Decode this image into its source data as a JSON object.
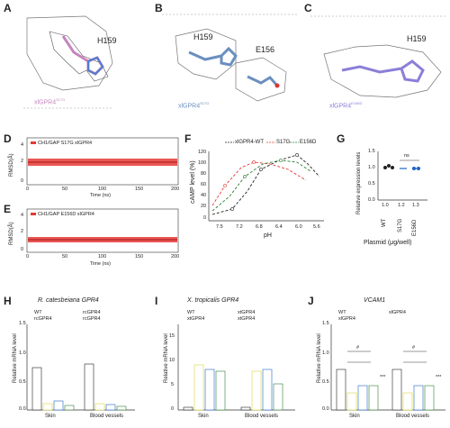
{
  "panels": {
    "A": {
      "label": "A",
      "residue": "H159",
      "caption": "xlGPR4",
      "caption_sup": "S17G"
    },
    "B": {
      "label": "B",
      "residue1": "H159",
      "residue2": "E156",
      "caption": "xlGPR4",
      "caption_sup": "S17G"
    },
    "C": {
      "label": "C",
      "residue": "H159",
      "caption": "xlGPR4",
      "caption_sup": "E156D"
    },
    "D": {
      "label": "D",
      "legend": "CH1/GAP S17G xlGPR4",
      "ylabel": "RMSD(Å)",
      "xlabel": "Time (ns)",
      "xticks": [
        "0",
        "50",
        "100",
        "150",
        "200"
      ],
      "yticks": [
        "4",
        "2",
        "0"
      ]
    },
    "E": {
      "label": "E",
      "legend": "CH1/GAP E156D xlGPR4",
      "ylabel": "RMSD(Å)",
      "xlabel": "Time (ns)",
      "xticks": [
        "0",
        "50",
        "100",
        "150",
        "200"
      ],
      "yticks": [
        "4",
        "2",
        "0"
      ]
    },
    "F": {
      "label": "F",
      "ylabel": "cAMP level (%)",
      "xlabel": "pH",
      "yticks": [
        "120",
        "100",
        "80",
        "60",
        "40",
        "20",
        "0"
      ],
      "xticks": [
        "7.5",
        "7.2",
        "6.8",
        "6.4",
        "6.0",
        "5.6"
      ],
      "legend": [
        "xlGPR4-WT",
        "S17G",
        "E156D"
      ]
    },
    "G": {
      "label": "G",
      "ylabel": "Relative expression levels",
      "xlabel": "Plasmid (μg/well)",
      "ns": "ns",
      "yticks": [
        "1.5",
        "1.0",
        "0.5",
        "0.0"
      ],
      "bars": [
        "WT",
        "S17G",
        "E156D"
      ],
      "doses": [
        "1.0",
        "1.2",
        "1.3"
      ]
    },
    "H": {
      "label": "H",
      "title": "R. catesbeiana GPR4",
      "ylabel": "Relative mRNA level",
      "legend": [
        "WT",
        "rcGPR4",
        "rcGPR4",
        "rcGPR4"
      ],
      "groups": [
        "Skin",
        "Blood vessels"
      ],
      "yticks": [
        "1.5",
        "1.0",
        "0.5",
        "0.0"
      ]
    },
    "I": {
      "label": "I",
      "title": "X. tropicalis GPR4",
      "ylabel": "Relative mRNA level",
      "legend": [
        "WT",
        "xtGPR4",
        "xtGPR4",
        "xtGPR4"
      ],
      "groups": [
        "Skin",
        "Blood vessels"
      ],
      "yticks": [
        "15",
        "10",
        "5",
        "0"
      ]
    },
    "J": {
      "label": "J",
      "title": "VCAM1",
      "ylabel": "Relative mRNA level",
      "legend": [
        "WT",
        "xlGPR4",
        "xlGPR4"
      ],
      "groups": [
        "Skin",
        "Blood vessels"
      ],
      "yticks": [
        "1.5",
        "1.0",
        "0.5",
        "0.0"
      ],
      "sig": "#",
      "stars": "***"
    }
  },
  "colors": {
    "red": "#e53935",
    "green": "#2e7d32",
    "teal": "#26a69a",
    "blue": "#1e63c8",
    "yellow": "#d9d23a",
    "pink": "#c586c0",
    "dark": "#222222"
  }
}
